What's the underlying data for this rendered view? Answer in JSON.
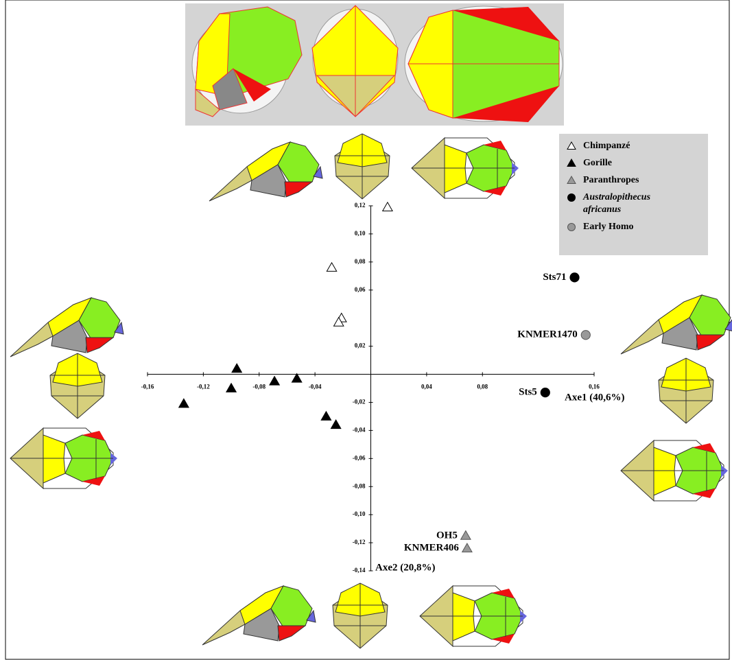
{
  "chart_data": {
    "type": "scatter",
    "x_label": "Axe1 (40,6%)",
    "y_label": "Axe2 (20,8%)",
    "xlim": [
      -0.16,
      0.16
    ],
    "ylim": [
      -0.14,
      0.12
    ],
    "xticks": [
      {
        "value": -0.16,
        "label": "-0,16"
      },
      {
        "value": -0.12,
        "label": "-0,12"
      },
      {
        "value": -0.08,
        "label": "-0,08"
      },
      {
        "value": -0.04,
        "label": "-0,04"
      },
      {
        "value": 0.04,
        "label": "0,04"
      },
      {
        "value": 0.08,
        "label": "0,08"
      },
      {
        "value": 0.16,
        "label": "0,16"
      }
    ],
    "yticks": [
      {
        "value": 0.12,
        "label": "0,12"
      },
      {
        "value": 0.1,
        "label": "0,10"
      },
      {
        "value": 0.08,
        "label": "0,08"
      },
      {
        "value": 0.06,
        "label": "0,06"
      },
      {
        "value": 0.02,
        "label": "0,02"
      },
      {
        "value": -0.02,
        "label": "-0,02"
      },
      {
        "value": -0.04,
        "label": "-0,04"
      },
      {
        "value": -0.06,
        "label": "-0,06"
      },
      {
        "value": -0.08,
        "label": "-0,08"
      },
      {
        "value": -0.1,
        "label": "-0,10"
      },
      {
        "value": -0.12,
        "label": "-0,12"
      },
      {
        "value": -0.14,
        "label": "-0,14"
      }
    ],
    "series": [
      {
        "name": "Chimpanzé",
        "marker": "triangle",
        "color": "#ffffff",
        "x": [
          0.012,
          -0.028,
          -0.021,
          -0.023
        ],
        "y": [
          0.119,
          0.076,
          0.04,
          0.037
        ]
      },
      {
        "name": "Gorille",
        "marker": "triangle",
        "color": "#000000",
        "x": [
          -0.096,
          -0.1,
          -0.134,
          -0.069,
          -0.053,
          -0.032,
          -0.025
        ],
        "y": [
          0.004,
          -0.01,
          -0.021,
          -0.005,
          -0.003,
          -0.03,
          -0.036
        ]
      },
      {
        "name": "Paranthropes",
        "marker": "triangle",
        "color": "#999999",
        "x": [
          0.068,
          0.069
        ],
        "y": [
          -0.115,
          -0.124
        ],
        "labels": [
          "OH5",
          "KNMER406"
        ]
      },
      {
        "name": "Australopithecus africanus",
        "marker": "circle",
        "color": "#000000",
        "x": [
          0.146,
          0.125
        ],
        "y": [
          0.069,
          -0.013
        ],
        "labels": [
          "Sts71",
          "Sts5"
        ]
      },
      {
        "name": "Early Homo",
        "marker": "circle",
        "color": "#999999",
        "x": [
          0.154
        ],
        "y": [
          0.028
        ],
        "labels": [
          "KNMER1470"
        ]
      }
    ]
  }
}
